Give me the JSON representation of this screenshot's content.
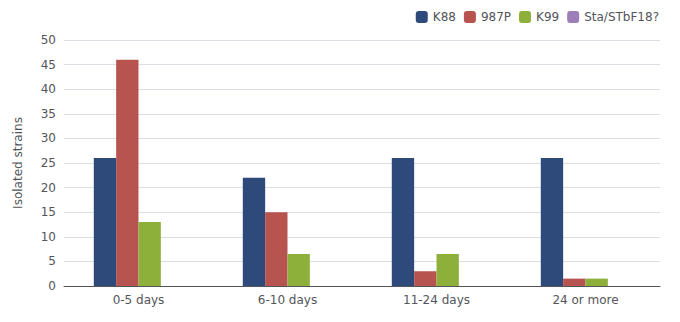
{
  "chart_data": {
    "type": "bar",
    "categories": [
      "0-5 days",
      "6-10 days",
      "11-24 days",
      "24 or more"
    ],
    "series": [
      {
        "name": "K88",
        "color": "#2E4A7A",
        "values": [
          26,
          22,
          26,
          26
        ]
      },
      {
        "name": "987P",
        "color": "#B85450",
        "values": [
          46,
          15,
          3,
          1.5
        ]
      },
      {
        "name": "K99",
        "color": "#8DB03A",
        "values": [
          13,
          6.5,
          6.5,
          1.5
        ]
      },
      {
        "name": "Sta/STbF18?",
        "color": "#9B7FB6",
        "values": [
          0,
          0,
          0,
          0
        ]
      }
    ],
    "ylabel": "Isolated strains",
    "ylim": [
      0,
      50
    ],
    "yticks": [
      0,
      5,
      10,
      15,
      20,
      25,
      30,
      35,
      40,
      45,
      50
    ],
    "grid": true,
    "legend": "upper right"
  }
}
